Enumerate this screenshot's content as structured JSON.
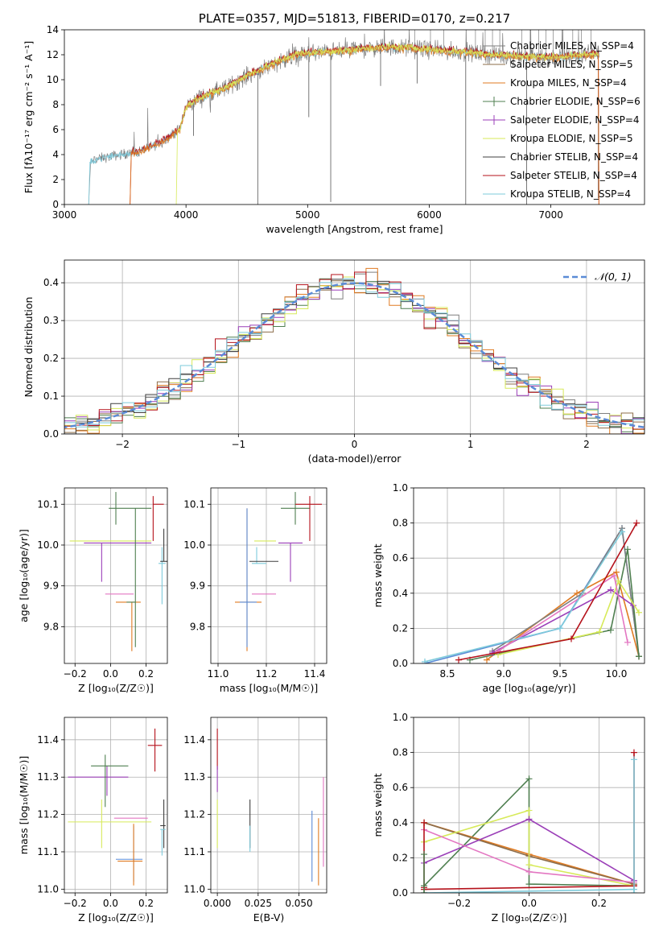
{
  "chart_data": [
    {
      "id": "spectrum",
      "type": "line",
      "title": "PLATE=0357, MJD=51813, FIBERID=0170, z=0.217",
      "xlabel": "wavelength [Angstrom, rest frame]",
      "ylabel": "Flux [fλ10⁻¹⁷ erg cm⁻² s⁻¹ A⁻¹]",
      "xlim": [
        3000,
        7770
      ],
      "ylim": [
        0,
        14
      ],
      "xticks": [
        "3000",
        "4000",
        "5000",
        "6000",
        "7000"
      ],
      "yticks": [
        "0",
        "2",
        "4",
        "6",
        "8",
        "10",
        "12",
        "14"
      ],
      "grid": false,
      "legend_position": "upper-right",
      "legend": [
        {
          "label": "Chabrier MILES, N_SSP=4",
          "color": "#7f7f7f"
        },
        {
          "label": "Salpeter MILES, N_SSP=5",
          "color": "#8c6d4a"
        },
        {
          "label": "Kroupa MILES, N_SSP=4",
          "color": "#e07b22"
        },
        {
          "label": "Chabrier ELODIE, N_SSP=6",
          "color": "#4f7f50"
        },
        {
          "label": "Salpeter ELODIE, N_SSP=4",
          "color": "#9b3fb8"
        },
        {
          "label": "Kroupa ELODIE, N_SSP=5",
          "color": "#d7ea5a"
        },
        {
          "label": "Chabrier STELIB, N_SSP=4",
          "color": "#3f3f3f"
        },
        {
          "label": "Salpeter STELIB, N_SSP=4",
          "color": "#b5121b"
        },
        {
          "label": "Kroupa STELIB, N_SSP=4",
          "color": "#7ecbdb"
        }
      ],
      "continuum": {
        "x": [
          3200,
          3250,
          3400,
          3600,
          3800,
          3950,
          4000,
          4100,
          4300,
          4500,
          4700,
          4900,
          5100,
          5300,
          5500,
          5700,
          5900,
          6100,
          6300,
          6500,
          6700,
          6900,
          7100,
          7300,
          7400
        ],
        "y": [
          3.2,
          3.6,
          3.9,
          4.2,
          5.0,
          6.0,
          7.8,
          8.5,
          9.2,
          10.3,
          11.2,
          12.0,
          12.2,
          12.3,
          12.5,
          12.6,
          12.5,
          12.3,
          12.2,
          12.0,
          11.9,
          11.8,
          11.8,
          12.0,
          12.1
        ]
      }
    },
    {
      "id": "residual-hist",
      "type": "histogram",
      "xlabel": "(data-model)/error",
      "ylabel": "Normed distribution",
      "xlim": [
        -2.5,
        2.5
      ],
      "ylim": [
        0,
        0.46
      ],
      "xticks": [
        "−2",
        "−1",
        "0",
        "1",
        "2"
      ],
      "yticks": [
        "0.0",
        "0.1",
        "0.2",
        "0.3",
        "0.4"
      ],
      "grid": true,
      "legend_position": "upper-right",
      "legend": [
        {
          "label": "𝒩(0, 1)",
          "color": "#5b8bd6"
        }
      ],
      "bin_width": 0.1
    },
    {
      "id": "age-vs-z",
      "type": "errorbar",
      "xlabel": "Z [log₁₀(Z/Z☉)]",
      "ylabel": "age  [log₁₀(age/yr)]",
      "xlim": [
        -0.26,
        0.32
      ],
      "ylim": [
        9.71,
        10.14
      ],
      "xticks": [
        "−0.2",
        "0.0",
        "0.2"
      ],
      "yticks": [
        "9.8",
        "9.9",
        "10.0",
        "10.1"
      ],
      "grid": true,
      "points": [
        {
          "x": -0.05,
          "xerr": [
            0.1,
            0.28
          ],
          "y": 10.005,
          "yerr": [
            0.095,
            0.0
          ],
          "color": "#9b3fb8"
        },
        {
          "x": -0.05,
          "xerr": [
            0.18,
            0.28
          ],
          "y": 10.01,
          "yerr": [
            0.0,
            0.0
          ],
          "color": "#d7ea5a"
        },
        {
          "x": 0.03,
          "xerr": [
            0.04,
            0.2
          ],
          "y": 10.09,
          "yerr": [
            0.04,
            0.04
          ],
          "color": "#4f7f50"
        },
        {
          "x": 0.11,
          "xerr": [
            0.14,
            0.02
          ],
          "y": 9.88,
          "yerr": [
            0.0,
            0.0
          ],
          "color": "#e377c2"
        },
        {
          "x": 0.12,
          "xerr": [
            0.09,
            0.05
          ],
          "y": 9.86,
          "yerr": [
            0.12,
            0.0
          ],
          "color": "#e07b22"
        },
        {
          "x": 0.14,
          "xerr": [
            0.05,
            0.0
          ],
          "y": 9.86,
          "yerr": [
            0.11,
            0.23
          ],
          "color": "#4f7f50"
        },
        {
          "x": 0.24,
          "xerr": [
            0.0,
            0.06
          ],
          "y": 10.1,
          "yerr": [
            0.09,
            0.02
          ],
          "color": "#b5121b"
        },
        {
          "x": 0.29,
          "xerr": [
            0.02,
            0.02
          ],
          "y": 9.955,
          "yerr": [
            0.1,
            0.04
          ],
          "color": "#7ecbdb"
        },
        {
          "x": 0.3,
          "xerr": [
            0.02,
            0.02
          ],
          "y": 9.96,
          "yerr": [
            0.0,
            0.08
          ],
          "color": "#3f3f3f"
        }
      ]
    },
    {
      "id": "age-vs-mass",
      "type": "errorbar",
      "xlabel": "mass [log₁₀(M/M☉)]",
      "ylabel": "",
      "xlim": [
        10.97,
        11.45
      ],
      "ylim": [
        9.71,
        10.14
      ],
      "xticks": [
        "11.0",
        "11.2",
        "11.4"
      ],
      "yticks": [
        "9.8",
        "9.9",
        "10.0",
        "10.1"
      ],
      "grid": true,
      "points": [
        {
          "x": 11.12,
          "xerr": [
            0.05,
            0.06
          ],
          "y": 9.86,
          "yerr": [
            0.12,
            0.23
          ],
          "color": "#e07b22"
        },
        {
          "x": 11.12,
          "xerr": [
            0.03,
            0.04
          ],
          "y": 9.86,
          "yerr": [
            0.11,
            0.23
          ],
          "color": "#5b8bd6"
        },
        {
          "x": 11.16,
          "xerr": [
            0.02,
            0.04
          ],
          "y": 9.955,
          "yerr": [
            0.0,
            0.04
          ],
          "color": "#7ecbdb"
        },
        {
          "x": 11.18,
          "xerr": [
            0.05,
            0.07
          ],
          "y": 9.96,
          "yerr": [
            0.0,
            0.0
          ],
          "color": "#3f3f3f"
        },
        {
          "x": 11.18,
          "xerr": [
            0.03,
            0.06
          ],
          "y": 10.01,
          "yerr": [
            0.0,
            0.0
          ],
          "color": "#d7ea5a"
        },
        {
          "x": 11.19,
          "xerr": [
            0.05,
            0.05
          ],
          "y": 9.88,
          "yerr": [
            0.0,
            0.0
          ],
          "color": "#e377c2"
        },
        {
          "x": 11.3,
          "xerr": [
            0.05,
            0.05
          ],
          "y": 10.005,
          "yerr": [
            0.095,
            0.0
          ],
          "color": "#9b3fb8"
        },
        {
          "x": 11.32,
          "xerr": [
            0.06,
            0.06
          ],
          "y": 10.09,
          "yerr": [
            0.04,
            0.04
          ],
          "color": "#4f7f50"
        },
        {
          "x": 11.38,
          "xerr": [
            0.06,
            0.05
          ],
          "y": 10.1,
          "yerr": [
            0.09,
            0.02
          ],
          "color": "#b5121b"
        }
      ]
    },
    {
      "id": "weight-vs-age",
      "type": "line",
      "xlabel": "age  [log₁₀(age/yr)]",
      "ylabel": "mass weight",
      "xlim": [
        8.2,
        10.25
      ],
      "ylim": [
        0,
        1
      ],
      "xticks": [
        "8.5",
        "9.0",
        "9.5",
        "10.0"
      ],
      "yticks": [
        "0.0",
        "0.2",
        "0.4",
        "0.6",
        "0.8",
        "1.0"
      ],
      "grid": true,
      "series": [
        {
          "color": "#5b8bd6",
          "x": [
            8.3,
            9.5,
            10.05,
            10.2
          ],
          "y": [
            0.0,
            0.2,
            0.77,
            0.04
          ]
        },
        {
          "color": "#e07b22",
          "x": [
            8.85,
            9.65,
            10.0,
            10.2
          ],
          "y": [
            0.02,
            0.4,
            0.52,
            0.04
          ]
        },
        {
          "color": "#7f7f7f",
          "x": [
            8.9,
            9.7,
            10.05,
            10.2
          ],
          "y": [
            0.07,
            0.4,
            0.77,
            0.04
          ]
        },
        {
          "color": "#4f7f50",
          "x": [
            8.7,
            9.95,
            10.1,
            10.2
          ],
          "y": [
            0.02,
            0.19,
            0.65,
            0.04
          ]
        },
        {
          "color": "#9b3fb8",
          "x": [
            8.9,
            9.95,
            10.15
          ],
          "y": [
            0.06,
            0.42,
            0.33
          ]
        },
        {
          "color": "#d7ea5a",
          "x": [
            8.95,
            9.85,
            10.02,
            10.2
          ],
          "y": [
            0.05,
            0.18,
            0.47,
            0.29
          ]
        },
        {
          "color": "#e377c2",
          "x": [
            8.95,
            9.98,
            10.1
          ],
          "y": [
            0.07,
            0.5,
            0.12
          ]
        },
        {
          "color": "#b5121b",
          "x": [
            8.6,
            9.6,
            10.18
          ],
          "y": [
            0.02,
            0.14,
            0.8
          ]
        },
        {
          "color": "#7ecbdb",
          "x": [
            8.3,
            9.5,
            10.05
          ],
          "y": [
            0.01,
            0.2,
            0.75
          ]
        }
      ]
    },
    {
      "id": "mass-vs-z",
      "type": "errorbar",
      "xlabel": "Z [log₁₀(Z/Z☉)]",
      "ylabel": "mass [log₁₀(M/M☉)]",
      "xlim": [
        -0.26,
        0.32
      ],
      "ylim": [
        10.99,
        11.46
      ],
      "xticks": [
        "−0.2",
        "0.0",
        "0.2"
      ],
      "yticks": [
        "11.0",
        "11.1",
        "11.2",
        "11.3",
        "11.4"
      ],
      "grid": true,
      "points": [
        {
          "x": -0.05,
          "xerr": [
            0.19,
            0.28
          ],
          "y": 11.18,
          "yerr": [
            0.07,
            0.06
          ],
          "color": "#d7ea5a"
        },
        {
          "x": -0.02,
          "xerr": [
            0.22,
            0.12
          ],
          "y": 11.3,
          "yerr": [
            0.05,
            0.03
          ],
          "color": "#9b3fb8"
        },
        {
          "x": -0.03,
          "xerr": [
            0.08,
            0.13
          ],
          "y": 11.33,
          "yerr": [
            0.11,
            0.03
          ],
          "color": "#4f7f50"
        },
        {
          "x": 0.09,
          "xerr": [
            0.07,
            0.12
          ],
          "y": 11.19,
          "yerr": [
            0.0,
            0.0
          ],
          "color": "#e377c2"
        },
        {
          "x": 0.13,
          "xerr": [
            0.1,
            0.05
          ],
          "y": 11.08,
          "yerr": [
            0.06,
            0.09
          ],
          "color": "#5b8bd6"
        },
        {
          "x": 0.13,
          "xerr": [
            0.09,
            0.05
          ],
          "y": 11.075,
          "yerr": [
            0.065,
            0.1
          ],
          "color": "#e07b22"
        },
        {
          "x": 0.25,
          "xerr": [
            0.04,
            0.04
          ],
          "y": 11.385,
          "yerr": [
            0.07,
            0.045
          ],
          "color": "#b5121b"
        },
        {
          "x": 0.3,
          "xerr": [
            0.02,
            0.01
          ],
          "y": 11.17,
          "yerr": [
            0.06,
            0.07
          ],
          "color": "#3f3f3f"
        },
        {
          "x": 0.29,
          "xerr": [
            0.01,
            0.02
          ],
          "y": 11.16,
          "yerr": [
            0.07,
            0.0
          ],
          "color": "#7ecbdb"
        }
      ]
    },
    {
      "id": "mass-vs-ebv",
      "type": "errorbar",
      "xlabel": "E(B-V)",
      "ylabel": "",
      "xlim": [
        -0.004,
        0.067
      ],
      "ylim": [
        10.99,
        11.46
      ],
      "xticks": [
        "0.000",
        "0.025",
        "0.050"
      ],
      "yticks": [
        "11.0",
        "11.1",
        "11.2",
        "11.3",
        "11.4"
      ],
      "grid": true,
      "points": [
        {
          "x": 0.0,
          "xerr": [
            0,
            0
          ],
          "y": 11.38,
          "yerr": [
            0.06,
            0.05
          ],
          "color": "#b5121b"
        },
        {
          "x": 0.0,
          "xerr": [
            0,
            0
          ],
          "y": 11.3,
          "yerr": [
            0.04,
            0.03
          ],
          "color": "#9b3fb8"
        },
        {
          "x": 0.0,
          "xerr": [
            0,
            0
          ],
          "y": 11.18,
          "yerr": [
            0.07,
            0.06
          ],
          "color": "#d7ea5a"
        },
        {
          "x": 0.02,
          "xerr": [
            0,
            0
          ],
          "y": 11.17,
          "yerr": [
            0.06,
            0.07
          ],
          "color": "#3f3f3f"
        },
        {
          "x": 0.02,
          "xerr": [
            0,
            0
          ],
          "y": 11.15,
          "yerr": [
            0.05,
            0.02
          ],
          "color": "#7ecbdb"
        },
        {
          "x": 0.058,
          "xerr": [
            0,
            0
          ],
          "y": 11.12,
          "yerr": [
            0.1,
            0.09
          ],
          "color": "#5b8bd6"
        },
        {
          "x": 0.062,
          "xerr": [
            0,
            0
          ],
          "y": 11.1,
          "yerr": [
            0.09,
            0.09
          ],
          "color": "#e07b22"
        },
        {
          "x": 0.065,
          "xerr": [
            0,
            0
          ],
          "y": 11.2,
          "yerr": [
            0.14,
            0.1
          ],
          "color": "#e377c2"
        }
      ]
    },
    {
      "id": "weight-vs-z",
      "type": "line",
      "xlabel": "Z [log₁₀(Z/Z☉)]",
      "ylabel": "mass weight",
      "xlim": [
        -0.33,
        0.33
      ],
      "ylim": [
        0,
        1
      ],
      "xticks": [
        "−0.2",
        "0.0",
        "0.2"
      ],
      "yticks": [
        "0.0",
        "0.2",
        "0.4",
        "0.6",
        "0.8",
        "1.0"
      ],
      "grid": true,
      "series": [
        {
          "color": "#4f7f50",
          "x": [
            -0.3,
            0.0,
            0.0,
            0.3
          ],
          "y": [
            0.04,
            0.65,
            0.05,
            0.04
          ]
        },
        {
          "color": "#e07b22",
          "x": [
            -0.3,
            0.0,
            0.3
          ],
          "y": [
            0.4,
            0.22,
            0.05
          ]
        },
        {
          "color": "#8c6d4a",
          "x": [
            -0.3,
            0.0,
            0.3
          ],
          "y": [
            0.4,
            0.21,
            0.05
          ]
        },
        {
          "color": "#d7ea5a",
          "x": [
            -0.3,
            0.0,
            0.0,
            0.3
          ],
          "y": [
            0.29,
            0.47,
            0.16,
            0.04
          ]
        },
        {
          "color": "#9b3fb8",
          "x": [
            -0.3,
            0.0,
            0.3
          ],
          "y": [
            0.17,
            0.42,
            0.07
          ]
        },
        {
          "color": "#e377c2",
          "x": [
            -0.3,
            0.0,
            0.3
          ],
          "y": [
            0.36,
            0.12,
            0.06
          ]
        },
        {
          "color": "#b5121b",
          "x": [
            -0.3,
            0.3
          ],
          "y": [
            0.02,
            0.04
          ]
        },
        {
          "color": "#7ecbdb",
          "x": [
            -0.3,
            0.3
          ],
          "y": [
            0.0,
            0.02
          ]
        },
        {
          "color": "#b5121b",
          "x": [
            0.3,
            0.3
          ],
          "y": [
            0.04,
            0.8
          ]
        },
        {
          "color": "#7ecbdb",
          "x": [
            0.3,
            0.3
          ],
          "y": [
            0.0,
            0.76
          ]
        },
        {
          "color": "#b5121b",
          "x": [
            -0.3,
            -0.3
          ],
          "y": [
            0.03,
            0.4
          ]
        },
        {
          "color": "#4f7f50",
          "x": [
            -0.3,
            -0.3
          ],
          "y": [
            0.0,
            0.22
          ]
        }
      ]
    }
  ]
}
